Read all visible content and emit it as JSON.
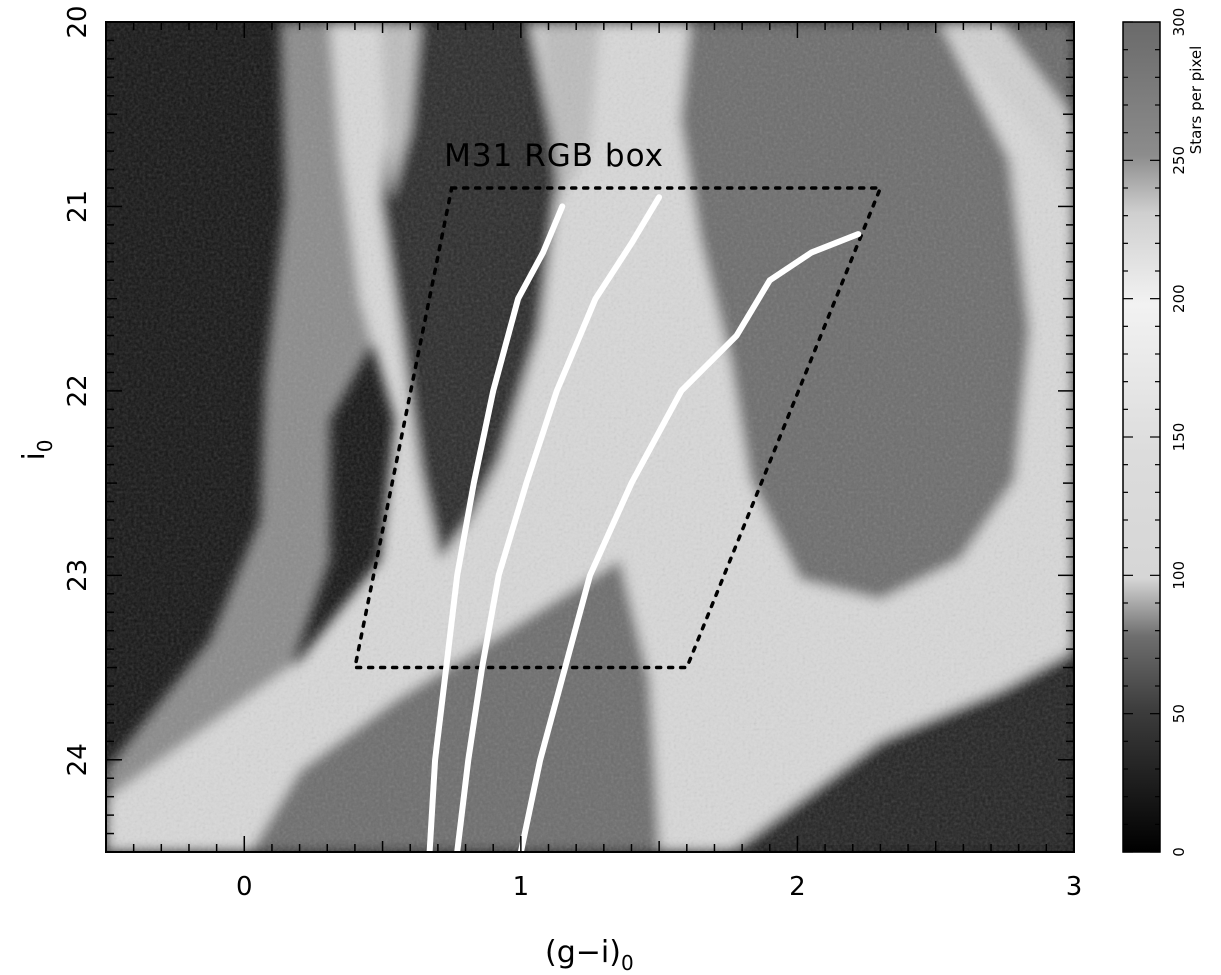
{
  "chart_data": {
    "type": "heatmap",
    "title": "",
    "xlabel_main": "(g−i)",
    "xlabel_sub": "0",
    "ylabel_main": "i",
    "ylabel_sub": "0",
    "xlim": [
      -0.5,
      3
    ],
    "ylim": [
      24.5,
      20
    ],
    "y_inverted": true,
    "x_ticks": [
      0,
      1,
      2,
      3
    ],
    "y_ticks": [
      20,
      21,
      22,
      23,
      24
    ],
    "grid": false,
    "colormap": "grayscale",
    "colorbar": {
      "label": "Stars per pixel",
      "range": [
        0,
        300
      ],
      "ticks": [
        0,
        50,
        100,
        150,
        200,
        250,
        300
      ]
    },
    "annotations": [
      {
        "text": "M31 RGB box",
        "x": 1.12,
        "y": 20.78
      }
    ],
    "selection_box": {
      "style": "dotted",
      "vertices": [
        [
          0.75,
          20.9
        ],
        [
          2.3,
          20.9
        ],
        [
          1.6,
          23.5
        ],
        [
          0.4,
          23.5
        ]
      ]
    },
    "series": [
      {
        "style": "white-line",
        "x": [
          0.67,
          0.69,
          0.73,
          0.77,
          0.83,
          0.9,
          0.99,
          1.08,
          1.15
        ],
        "y": [
          24.5,
          24.0,
          23.5,
          23.0,
          22.5,
          22.0,
          21.5,
          21.25,
          21.0
        ]
      },
      {
        "style": "white-line",
        "x": [
          0.77,
          0.81,
          0.86,
          0.92,
          1.02,
          1.13,
          1.27,
          1.4,
          1.5
        ],
        "y": [
          24.5,
          24.0,
          23.5,
          23.0,
          22.5,
          22.0,
          21.5,
          21.2,
          20.95
        ]
      },
      {
        "style": "white-line",
        "x": [
          1.0,
          1.07,
          1.16,
          1.25,
          1.4,
          1.58,
          1.78,
          1.9,
          2.05,
          2.22
        ],
        "y": [
          24.5,
          24.0,
          23.5,
          23.0,
          22.5,
          22.0,
          21.7,
          21.4,
          21.25,
          21.15
        ]
      }
    ]
  }
}
